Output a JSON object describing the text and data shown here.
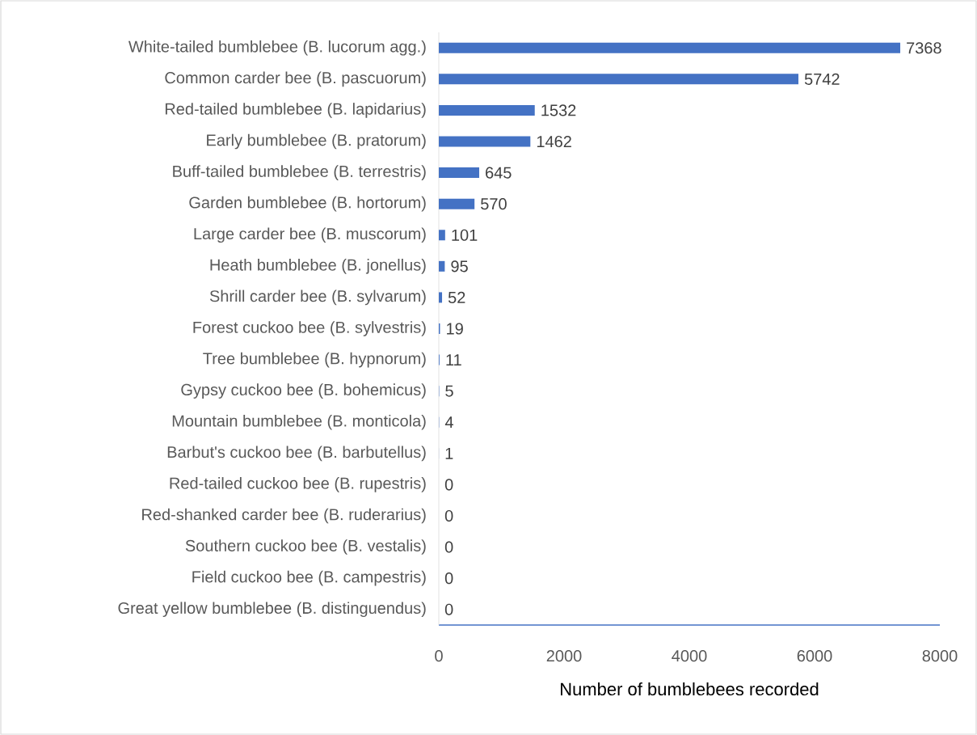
{
  "chart_data": {
    "type": "bar",
    "orientation": "horizontal",
    "xlabel": "Number of bumblebees recorded",
    "categories": [
      "White-tailed bumblebee (B. lucorum agg.)",
      "Common carder bee (B. pascuorum)",
      "Red-tailed bumblebee (B. lapidarius)",
      "Early bumblebee (B. pratorum)",
      "Buff-tailed bumblebee (B. terrestris)",
      "Garden bumblebee (B. hortorum)",
      "Large carder bee (B. muscorum)",
      "Heath bumblebee (B. jonellus)",
      "Shrill carder bee (B. sylvarum)",
      "Forest cuckoo bee (B. sylvestris)",
      "Tree bumblebee (B. hypnorum)",
      "Gypsy cuckoo bee (B. bohemicus)",
      "Mountain bumblebee (B. monticola)",
      "Barbut's cuckoo bee (B. barbutellus)",
      "Red-tailed cuckoo bee (B. rupestris)",
      "Red-shanked carder bee (B. ruderarius)",
      "Southern cuckoo bee (B. vestalis)",
      "Field cuckoo bee (B. campestris)",
      "Great yellow bumblebee (B. distinguendus)"
    ],
    "values": [
      7368,
      5742,
      1532,
      1462,
      645,
      570,
      101,
      95,
      52,
      19,
      11,
      5,
      4,
      1,
      0,
      0,
      0,
      0,
      0
    ],
    "color": "#4472c4",
    "data_labels": true,
    "xlim": [
      0,
      8000
    ],
    "xticks": [
      0,
      2000,
      4000,
      6000,
      8000
    ]
  }
}
